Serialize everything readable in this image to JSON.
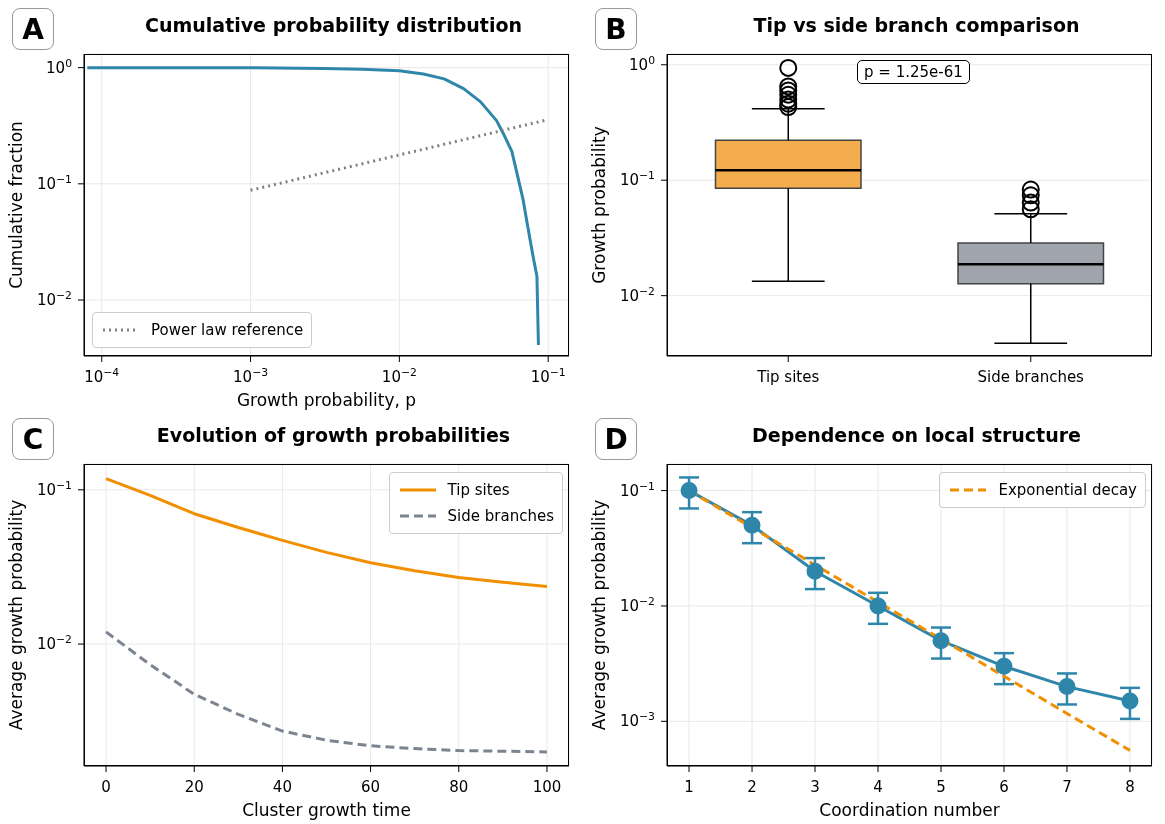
{
  "chart_data": [
    {
      "type": "line",
      "title": "Cumulative probability distribution",
      "xlabel": "Growth probability, p",
      "ylabel": "Cumulative fraction",
      "log": "xy",
      "grid": true,
      "legend": "bottom left",
      "xlim": [
        7.6e-05,
        0.138
      ],
      "ylim": [
        0.0033,
        1.31
      ],
      "xticks": [
        {
          "value": 0.0001,
          "label": "10$^{−4}$"
        },
        {
          "value": 0.001,
          "label": "10$^{−3}$"
        },
        {
          "value": 0.01,
          "label": "10$^{−2}$"
        },
        {
          "value": 0.1,
          "label": "10$^{−1}$"
        }
      ],
      "yticks": [
        {
          "value": 0.01,
          "label": "10$^{−2}$"
        },
        {
          "value": 0.1,
          "label": "10$^{−1}$"
        },
        {
          "value": 1,
          "label": "10$^{0}$"
        }
      ],
      "annotations": [
        "A"
      ],
      "series": [
        {
          "color": "#2e86ab",
          "line_style": "solid",
          "x": [
            8e-05,
            0.001,
            0.0031,
            0.0056,
            0.01,
            0.0145,
            0.02,
            0.027,
            0.035,
            0.045,
            0.05,
            0.057,
            0.062,
            0.068,
            0.072,
            0.079,
            0.084,
            0.086
          ],
          "values": [
            1,
            1,
            0.985,
            0.97,
            0.94,
            0.88,
            0.8,
            0.66,
            0.51,
            0.35,
            0.27,
            0.19,
            0.12,
            0.072,
            0.047,
            0.024,
            0.016,
            0.0041
          ]
        },
        {
          "name": "Power law reference",
          "color": "#808080",
          "line_style": "dotted",
          "x": [
            0.001,
            0.1
          ],
          "values": [
            0.088,
            0.357
          ]
        }
      ]
    },
    {
      "type": "box",
      "title": "Tip vs side branch comparison",
      "ylabel": "Growth probability",
      "log": true,
      "grid": "y",
      "categories": [
        "Tip sites",
        "Side branches"
      ],
      "colors": [
        "#f4ad4c",
        "#a0a4ad"
      ],
      "ylim": [
        0.003,
        1.24
      ],
      "yticks": [
        {
          "value": 0.01,
          "label": "10$^{−2}$"
        },
        {
          "value": 0.1,
          "label": "10$^{−1}$"
        },
        {
          "value": 1,
          "label": "10$^{0}$"
        }
      ],
      "annotations": [
        "B",
        "p = 1.25e-61"
      ],
      "boxes": [
        {
          "low": 0.0133,
          "q1": 0.085,
          "median": 0.122,
          "q3": 0.222,
          "high": 0.417,
          "outliers": [
            0.94,
            0.65,
            0.6,
            0.55,
            0.5,
            0.46,
            0.43
          ]
        },
        {
          "low": 0.00387,
          "q1": 0.0127,
          "median": 0.0187,
          "q3": 0.0286,
          "high": 0.0513,
          "outliers": [
            0.083,
            0.074,
            0.064,
            0.056
          ]
        }
      ]
    },
    {
      "type": "line",
      "title": "Evolution of growth probabilities",
      "xlabel": "Cluster growth time",
      "ylabel": "Average growth probability",
      "log": "y",
      "grid": true,
      "legend": "top right",
      "xlim": [
        -5,
        105
      ],
      "xticks": [
        0,
        20,
        40,
        60,
        80,
        100
      ],
      "ylim": [
        0.00162,
        0.147
      ],
      "yticks": [
        {
          "value": 0.01,
          "label": "10$^{−2}$"
        },
        {
          "value": 0.1,
          "label": "10$^{−1}$"
        }
      ],
      "annotations": [
        "C"
      ],
      "x": [
        0,
        10,
        20,
        30,
        40,
        50,
        60,
        70,
        80,
        90,
        100
      ],
      "series": [
        {
          "name": "Tip sites",
          "color": "#f18f01",
          "line_style": "solid",
          "values": [
            0.118,
            0.092,
            0.07,
            0.057,
            0.047,
            0.0393,
            0.0337,
            0.0299,
            0.027,
            0.0252,
            0.0236
          ]
        },
        {
          "name": "Side branches",
          "color": "#7d8491",
          "line_style": "dashed",
          "values": [
            0.012,
            0.00735,
            0.00473,
            0.0035,
            0.00273,
            0.00238,
            0.00219,
            0.0021,
            0.00204,
            0.00202,
            0.002
          ]
        }
      ]
    },
    {
      "type": "line",
      "title": "Dependence on local structure",
      "xlabel": "Coordination number",
      "ylabel": "Average growth probability",
      "log": "y",
      "grid": true,
      "legend": "top right",
      "xlim": [
        0.65,
        8.35
      ],
      "xticks": [
        1,
        2,
        3,
        4,
        5,
        6,
        7,
        8
      ],
      "ylim": [
        0.00041,
        0.17
      ],
      "yticks": [
        {
          "value": 0.001,
          "label": "10$^{−3}$"
        },
        {
          "value": 0.01,
          "label": "10$^{−2}$"
        },
        {
          "value": 0.1,
          "label": "10$^{−1}$"
        }
      ],
      "annotations": [
        "D"
      ],
      "x": [
        1,
        2,
        3,
        4,
        5,
        6,
        7,
        8
      ],
      "series": [
        {
          "color": "#2e86ab",
          "line_style": "solid",
          "marker": "circle",
          "values": [
            0.1,
            0.05,
            0.02,
            0.01,
            0.005,
            0.003,
            0.002,
            0.0015
          ],
          "errors": [
            0.03,
            0.015,
            0.006,
            0.003,
            0.0015,
            0.0009,
            0.0006,
            0.00045
          ]
        },
        {
          "name": "Exponential decay",
          "color": "#f18f01",
          "line_style": "dashed",
          "marker": "none",
          "values": [
            0.1,
            0.0477,
            0.0227,
            0.0108,
            0.00517,
            0.00246,
            0.00117,
            0.00056
          ]
        }
      ]
    }
  ]
}
